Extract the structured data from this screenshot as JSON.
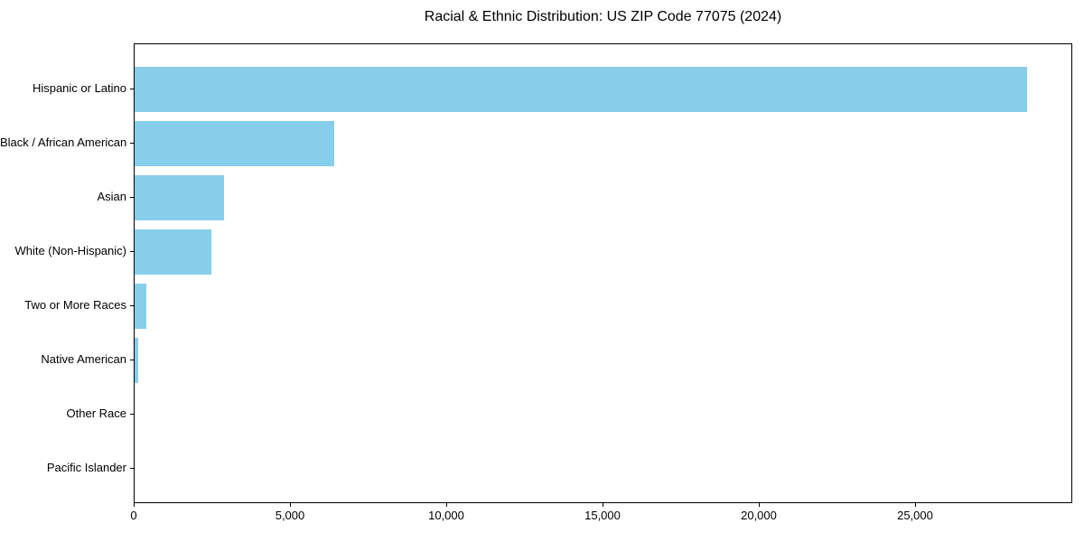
{
  "chart_data": {
    "type": "bar",
    "orientation": "horizontal",
    "title": "Racial & Ethnic Distribution: US ZIP Code 77075 (2024)",
    "xlabel": "",
    "ylabel": "",
    "categories": [
      "Hispanic or Latino",
      "Black / African American",
      "Asian",
      "White (Non-Hispanic)",
      "Two or More Races",
      "Native American",
      "Other Race",
      "Pacific Islander"
    ],
    "values": [
      28550,
      6400,
      2860,
      2460,
      375,
      115,
      0,
      0
    ],
    "xlim": [
      0,
      30030
    ],
    "xticks": [
      0,
      5000,
      10000,
      15000,
      20000,
      25000
    ],
    "xtick_labels": [
      "0",
      "5,000",
      "10,000",
      "15,000",
      "20,000",
      "25,000"
    ],
    "bar_color": "#87CEEB",
    "axis_color": "#000000",
    "text_color": "#000000",
    "grid": false,
    "legend": null
  }
}
